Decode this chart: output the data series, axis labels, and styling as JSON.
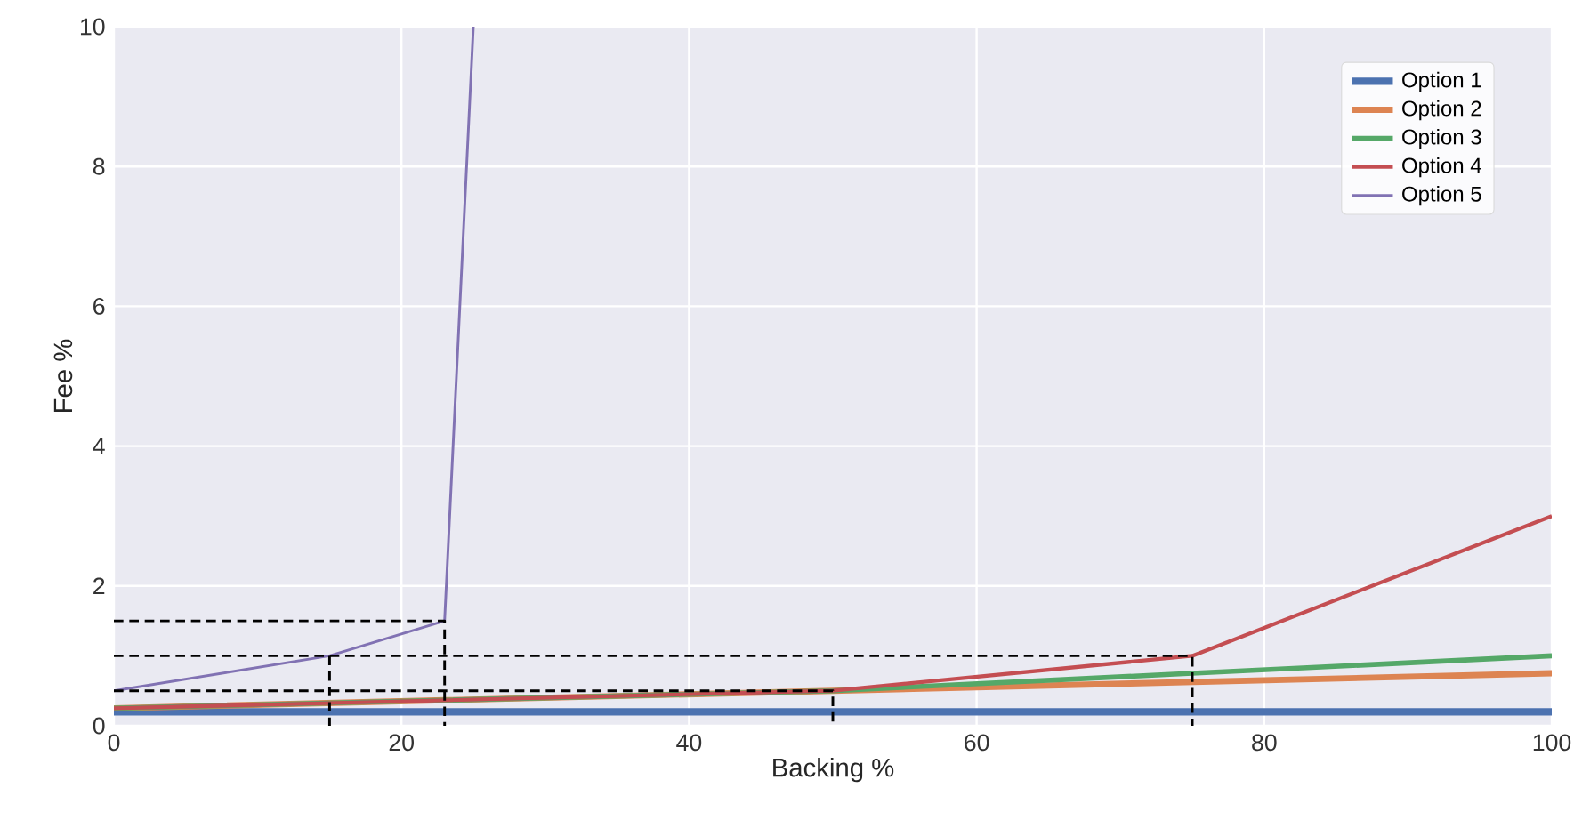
{
  "chart_data": {
    "type": "line",
    "xlabel": "Backing %",
    "ylabel": "Fee %",
    "xlim": [
      0,
      100
    ],
    "ylim": [
      0,
      10
    ],
    "xticks": [
      0,
      20,
      40,
      60,
      80,
      100
    ],
    "yticks": [
      0,
      2,
      4,
      6,
      8,
      10
    ],
    "grid": true,
    "legend": "top right",
    "line_style": "solid",
    "series": [
      {
        "name": "Option 1",
        "color": "#4c72b0",
        "x": [
          0,
          100
        ],
        "values": [
          0.2,
          0.2
        ]
      },
      {
        "name": "Option 2",
        "color": "#dd8452",
        "x": [
          0,
          50,
          100
        ],
        "values": [
          0.25,
          0.5,
          0.75
        ]
      },
      {
        "name": "Option 3",
        "color": "#55a868",
        "x": [
          0,
          50,
          75,
          100
        ],
        "values": [
          0.25,
          0.5,
          0.75,
          1.0
        ]
      },
      {
        "name": "Option 4",
        "color": "#c44e52",
        "x": [
          0,
          50,
          75,
          100
        ],
        "values": [
          0.25,
          0.5,
          1.0,
          3.0
        ]
      },
      {
        "name": "Option 5",
        "color": "#8172b3",
        "x": [
          0,
          15,
          23,
          25
        ],
        "values": [
          0.5,
          1.0,
          1.5,
          10
        ]
      },
      {
        "color": "#000000",
        "line_style": "dashed",
        "x": [
          0,
          23,
          23
        ],
        "values": [
          1.5,
          1.5,
          0
        ]
      },
      {
        "color": "#000000",
        "line_style": "dashed",
        "x": [
          0,
          75,
          75
        ],
        "values": [
          1.0,
          1.0,
          0
        ]
      },
      {
        "color": "#000000",
        "line_style": "dashed",
        "x": [
          0,
          50,
          50
        ],
        "values": [
          0.5,
          0.5,
          0
        ]
      },
      {
        "color": "#000000",
        "line_style": "dashed",
        "x": [
          15,
          15
        ],
        "values": [
          1.0,
          0
        ]
      }
    ]
  }
}
